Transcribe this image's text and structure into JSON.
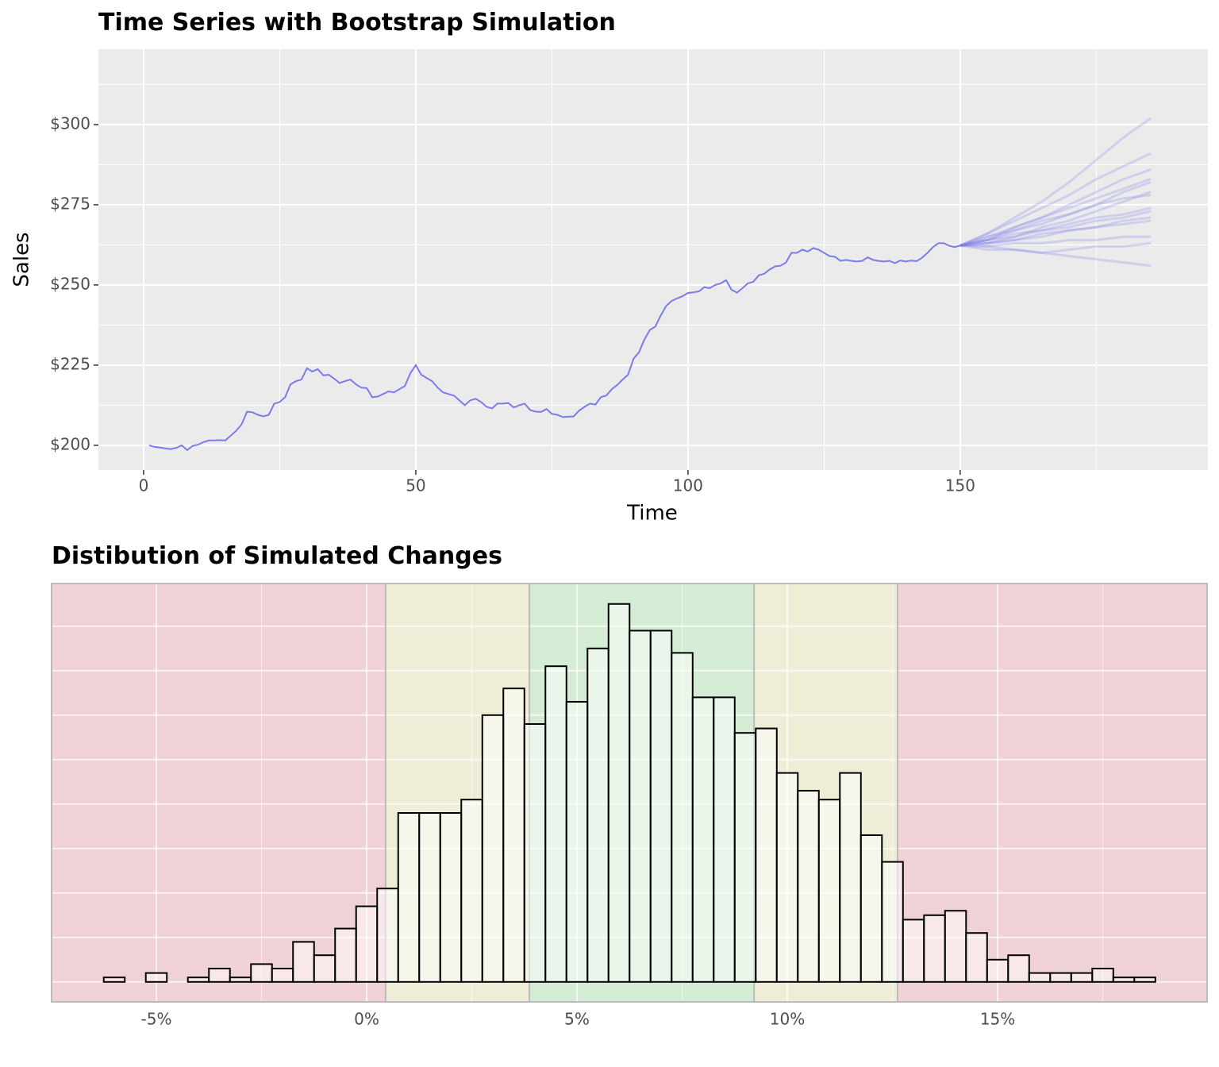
{
  "chart_data": [
    {
      "type": "line",
      "title": "Time Series with Bootstrap Simulation",
      "xlabel": "Time",
      "ylabel": "Sales",
      "xlim": [
        -8.3,
        195.5
      ],
      "ylim": [
        192.3,
        323.5
      ],
      "xticks": [
        0,
        50,
        100,
        150
      ],
      "x_minor_ticks": [
        25,
        75,
        125,
        175
      ],
      "yticks": [
        {
          "value": 200,
          "label": "$200"
        },
        {
          "value": 225,
          "label": "$225"
        },
        {
          "value": 250,
          "label": "$250"
        },
        {
          "value": 275,
          "label": "$275"
        },
        {
          "value": 300,
          "label": "$300"
        }
      ],
      "y_minor_ticks": [
        212.5,
        237.5,
        262.5,
        287.5,
        312.5
      ],
      "grid": true,
      "series": [
        {
          "color": "#7b7bea",
          "x": [
            1,
            2,
            3,
            4,
            5,
            6,
            7,
            8,
            9,
            10,
            11,
            12,
            13,
            14,
            15,
            16,
            17,
            18,
            19,
            20,
            21,
            22,
            23,
            24,
            25,
            26,
            27,
            28,
            29,
            30,
            31,
            32,
            33,
            34,
            35,
            36,
            37,
            38,
            39,
            40,
            41,
            42,
            43,
            44,
            45,
            46,
            47,
            48,
            49,
            50,
            51,
            52,
            53,
            54,
            55,
            56,
            57,
            58,
            59,
            60,
            61,
            62,
            63,
            64,
            65,
            66,
            67,
            68,
            69,
            70,
            71,
            72,
            73,
            74,
            75,
            76,
            77,
            78,
            79,
            80,
            81,
            82,
            83,
            84,
            85,
            86,
            87,
            88,
            89,
            90,
            91,
            92,
            93,
            94,
            95,
            96,
            97,
            98,
            99,
            100,
            101,
            102,
            103,
            104,
            105,
            106,
            107,
            108,
            109,
            110,
            111,
            112,
            113,
            114,
            115,
            116,
            117,
            118,
            119,
            120,
            121,
            122,
            123,
            124,
            125,
            126,
            127,
            128,
            129,
            130,
            131,
            132,
            133,
            134,
            135,
            136,
            137,
            138,
            139,
            140,
            141,
            142,
            143,
            144,
            145,
            146,
            147,
            148,
            149,
            150
          ],
          "values": [
            200,
            199.5,
            199.3,
            199,
            198.8,
            199.2,
            200,
            198.5,
            199.8,
            200.2,
            201,
            201.5,
            201.5,
            201.6,
            201.5,
            203,
            204.5,
            206.5,
            210.5,
            210.3,
            209.5,
            209,
            209.5,
            213,
            213.5,
            215,
            219,
            220,
            220.5,
            224,
            223,
            223.8,
            221.8,
            222,
            220.8,
            219.4,
            220,
            220.5,
            219,
            218,
            217.8,
            215,
            215.2,
            216,
            216.8,
            216.5,
            217.5,
            218.5,
            222.5,
            225,
            222,
            221,
            220,
            218,
            216.5,
            216,
            215.5,
            214,
            212.5,
            214,
            214.5,
            213.5,
            212,
            211.5,
            213,
            213,
            213.2,
            211.8,
            212.5,
            213,
            211,
            210.5,
            210.4,
            211.3,
            209.8,
            209.5,
            208.8,
            208.9,
            209,
            210.8,
            212,
            213,
            212.7,
            215,
            215.5,
            217.5,
            218.8,
            220.5,
            222,
            227,
            229,
            233,
            236,
            237,
            240.5,
            243.5,
            245,
            245.8,
            246.5,
            247.5,
            247.7,
            248,
            249.3,
            249,
            250,
            250.5,
            251.5,
            248.5,
            247.6,
            249,
            250.5,
            251,
            253,
            253.5,
            254.8,
            255.8,
            256,
            257,
            260,
            260,
            261,
            260.4,
            261.5,
            261,
            260,
            259,
            258.8,
            257.5,
            257.8,
            257.5,
            257.3,
            257.5,
            258.6,
            257.8,
            257.5,
            257.3,
            257.5,
            256.8,
            257.6,
            257.3,
            257.6,
            257.4,
            258.5,
            260,
            261.8,
            263,
            263,
            262.2,
            261.8,
            262.3
          ]
        }
      ],
      "simulation": {
        "color": "#7b7bea",
        "x": [
          150,
          155,
          160,
          165,
          170,
          175,
          180,
          185
        ],
        "paths": [
          [
            262.3,
            264,
            266,
            267,
            269,
            271,
            272,
            274
          ],
          [
            262.3,
            263,
            264,
            266,
            267,
            268,
            270,
            271
          ],
          [
            262.3,
            265,
            268,
            271,
            274,
            277,
            280,
            283
          ],
          [
            262.3,
            262,
            263,
            263,
            264,
            264,
            265,
            265
          ],
          [
            262.3,
            264,
            267,
            269,
            272,
            275,
            279,
            282
          ],
          [
            262.3,
            266,
            270,
            274,
            278,
            283,
            287,
            291
          ],
          [
            262.3,
            263,
            265,
            268,
            270,
            273,
            276,
            279
          ],
          [
            262.3,
            261,
            261,
            260,
            261,
            262,
            262,
            263
          ],
          [
            262.3,
            264,
            265,
            267,
            268,
            270,
            271,
            273
          ],
          [
            262.3,
            266,
            271,
            276,
            282,
            289,
            296,
            302
          ],
          [
            262.3,
            262,
            261,
            260,
            259,
            258,
            257,
            256
          ],
          [
            262.3,
            265,
            267,
            270,
            272,
            275,
            277,
            278
          ],
          [
            262.3,
            263,
            264,
            265,
            267,
            268,
            269,
            270
          ],
          [
            262.3,
            264,
            268,
            271,
            275,
            279,
            283,
            286
          ]
        ]
      }
    },
    {
      "type": "histogram",
      "title": "Distibution of Simulated Changes",
      "xlim": [
        -7.49,
        19.98
      ],
      "ylim": [
        -4.5,
        89.6
      ],
      "xticks": [
        {
          "value": -5,
          "label": "-5%"
        },
        {
          "value": 0,
          "label": "0%"
        },
        {
          "value": 5,
          "label": "5%"
        },
        {
          "value": 10,
          "label": "10%"
        },
        {
          "value": 15,
          "label": "15%"
        }
      ],
      "x_minor_ticks": [
        -2.5,
        2.5,
        7.5,
        12.5,
        17.5
      ],
      "ygrid": [
        0,
        10,
        20,
        30,
        40,
        50,
        60,
        70,
        80
      ],
      "thresholds": [
        0.45,
        3.87,
        9.21,
        12.62
      ],
      "band_colors": [
        "#f0d1d5",
        "#eeedd5",
        "#d5ecd4",
        "#eeedd5",
        "#f0d1d5"
      ],
      "bar_color": "#ffffff",
      "edge_color": "#000000",
      "bins": [
        -6.25,
        -5.75,
        -5.25,
        -4.75,
        -4.25,
        -3.75,
        -3.25,
        -2.75,
        -2.25,
        -1.75,
        -1.25,
        -0.75,
        -0.25,
        0.25,
        0.75,
        1.25,
        1.75,
        2.25,
        2.75,
        3.25,
        3.75,
        4.25,
        4.75,
        5.25,
        5.75,
        6.25,
        6.75,
        7.25,
        7.75,
        8.25,
        8.75,
        9.25,
        9.75,
        10.25,
        10.75,
        11.25,
        11.75,
        12.25,
        12.75,
        13.25,
        13.75,
        14.25,
        14.75,
        15.25,
        15.75,
        16.25,
        16.75,
        17.25,
        17.75,
        18.25,
        18.75
      ],
      "counts": [
        1,
        0,
        2,
        0,
        1,
        3,
        1,
        4,
        3,
        9,
        6,
        12,
        17,
        21,
        38,
        38,
        38,
        41,
        60,
        66,
        58,
        71,
        63,
        75,
        85,
        79,
        79,
        74,
        64,
        64,
        56,
        57,
        47,
        43,
        41,
        47,
        33,
        27,
        14,
        15,
        16,
        11,
        5,
        6,
        2,
        2,
        2,
        3,
        1,
        1
      ]
    }
  ]
}
